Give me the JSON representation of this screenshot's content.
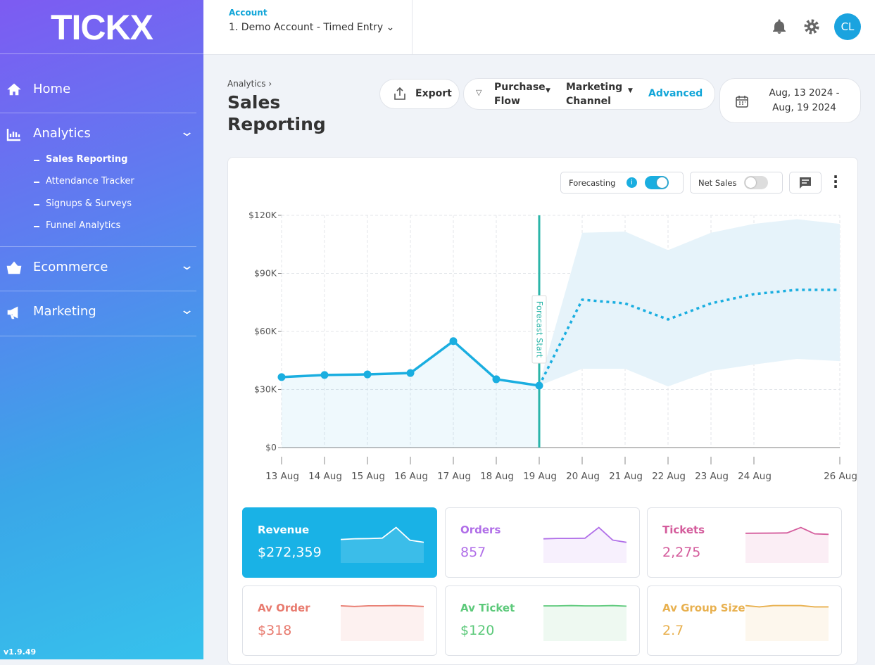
{
  "sidebar": {
    "logo": "TICKX",
    "nav": [
      {
        "label": "Home"
      },
      {
        "label": "Analytics",
        "children": [
          "Sales Reporting",
          "Attendance Tracker",
          "Signups & Surveys",
          "Funnel Analytics"
        ]
      },
      {
        "label": "Ecommerce"
      },
      {
        "label": "Marketing"
      }
    ],
    "version": "v1.9.49"
  },
  "header": {
    "account_label": "Account",
    "account_name": "1. Demo Account - Timed Entry",
    "avatar": "CL"
  },
  "page": {
    "breadcrumb": "Analytics",
    "title": "Sales Reporting",
    "export": "Export",
    "filters": [
      "Purchase Flow",
      "Marketing Channel"
    ],
    "advanced": "Advanced",
    "date_range": "Aug, 13 2024 - Aug, 19 2024"
  },
  "toggles": [
    {
      "label": "Forecasting",
      "on": true
    },
    {
      "label": "Net Sales",
      "on": false
    }
  ],
  "chart_data": {
    "type": "line",
    "categories": [
      "13 Aug",
      "14 Aug",
      "15 Aug",
      "16 Aug",
      "17 Aug",
      "18 Aug",
      "19 Aug",
      "20 Aug",
      "21 Aug",
      "22 Aug",
      "23 Aug",
      "24 Aug",
      null,
      "26 Aug"
    ],
    "series": [
      {
        "color": "#1aaee0",
        "style": "solid",
        "markers": true,
        "fill": true,
        "values": [
          36400,
          37500,
          37800,
          38500,
          55000,
          35300,
          32000,
          null,
          null,
          null,
          null,
          null,
          null,
          null
        ]
      },
      {
        "color": "#1aaee0",
        "style": "dotted",
        "markers": false,
        "fill": false,
        "values": [
          null,
          null,
          null,
          null,
          null,
          null,
          32000,
          76400,
          74500,
          66200,
          74500,
          79300,
          81500,
          81500
        ]
      }
    ],
    "band": {
      "color": "#e6f3fa",
      "upper": [
        null,
        null,
        null,
        null,
        null,
        null,
        33000,
        111000,
        111600,
        102000,
        111000,
        115600,
        118000,
        115600
      ],
      "lower": [
        null,
        null,
        null,
        null,
        null,
        null,
        32000,
        40700,
        40700,
        31600,
        39600,
        42900,
        45800,
        44700
      ]
    },
    "annotations": [
      {
        "text": "Forecast Start",
        "x": "19 Aug",
        "color": "#2bb5a8"
      }
    ],
    "ylim": [
      0,
      120000
    ],
    "yticks": [
      {
        "value": 0,
        "label": "$0"
      },
      {
        "value": 30000,
        "label": "$30K"
      },
      {
        "value": 60000,
        "label": "$60K"
      },
      {
        "value": 90000,
        "label": "$90K"
      },
      {
        "value": 120000,
        "label": "$120K"
      }
    ],
    "grid": true
  },
  "cards": [
    {
      "label": "Revenue",
      "value": "$272,359",
      "color": "#19b2e6",
      "active": true,
      "trend": [
        36400,
        37500,
        37800,
        38500,
        55000,
        35300,
        32000
      ]
    },
    {
      "label": "Orders",
      "value": "857",
      "color": "#b06ee8",
      "active": false,
      "trend": [
        117,
        119,
        119,
        120,
        172,
        111,
        100
      ]
    },
    {
      "label": "Tickets",
      "value": "2,275",
      "color": "#d45c9c",
      "active": false,
      "trend": [
        311,
        312,
        313,
        315,
        372,
        305,
        300
      ]
    },
    {
      "label": "Av Order",
      "value": "$318",
      "color": "#e87a6e",
      "active": false,
      "trend": [
        318,
        312,
        318,
        318,
        320,
        318,
        312
      ]
    },
    {
      "label": "Av Ticket",
      "value": "$120",
      "color": "#5cc97a",
      "active": false,
      "trend": [
        120,
        120,
        121,
        120,
        120,
        121,
        119
      ]
    },
    {
      "label": "Av Group Size",
      "value": "2.7",
      "color": "#e8b04e",
      "active": false,
      "trend": [
        2.7,
        2.6,
        2.7,
        2.7,
        2.7,
        2.6,
        2.6
      ]
    }
  ]
}
